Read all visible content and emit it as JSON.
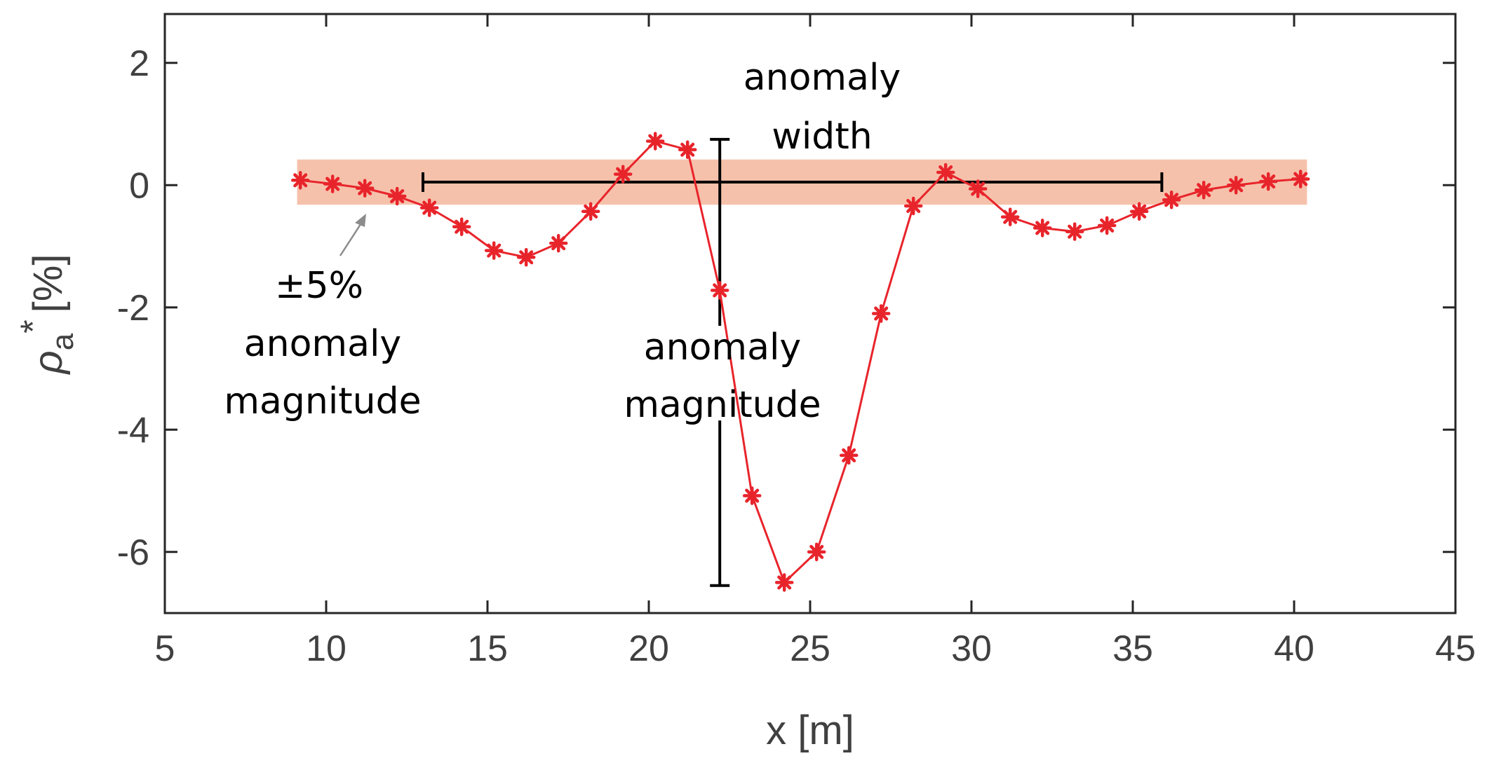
{
  "chart_data": {
    "type": "line",
    "title": "",
    "xlabel": "x [m]",
    "ylabel_main": "ρ",
    "ylabel_sub": "a",
    "ylabel_sup": "*",
    "ylabel_unit": "[%]",
    "xlim": [
      5,
      45
    ],
    "ylim": [
      -7,
      2.8
    ],
    "xticks": [
      5,
      10,
      15,
      20,
      25,
      30,
      35,
      40,
      45
    ],
    "yticks": [
      -6,
      -4,
      -2,
      0,
      2
    ],
    "xtick_labels": [
      "5",
      "10",
      "15",
      "20",
      "25",
      "30",
      "35",
      "40",
      "45"
    ],
    "ytick_labels": [
      "-6",
      "-4",
      "-2",
      "0",
      "2"
    ],
    "series": [
      {
        "name": "rho_a*",
        "color": "#e8242b",
        "marker": "asterisk",
        "x": [
          9.2,
          10.2,
          11.2,
          12.2,
          13.2,
          14.2,
          15.2,
          16.2,
          17.2,
          18.2,
          19.2,
          20.2,
          21.2,
          22.2,
          23.2,
          24.2,
          25.2,
          26.2,
          27.2,
          28.2,
          29.2,
          30.2,
          31.2,
          32.2,
          33.2,
          34.2,
          35.2,
          36.2,
          37.2,
          38.2,
          39.2,
          40.2
        ],
        "y": [
          0.08,
          0.02,
          -0.05,
          -0.18,
          -0.37,
          -0.68,
          -1.07,
          -1.18,
          -0.95,
          -0.43,
          0.18,
          0.72,
          0.58,
          -1.72,
          -5.08,
          -6.5,
          -6.0,
          -4.42,
          -2.1,
          -0.34,
          0.21,
          -0.06,
          -0.52,
          -0.7,
          -0.76,
          -0.66,
          -0.43,
          -0.24,
          -0.08,
          0.0,
          0.06,
          0.1
        ]
      }
    ],
    "band": {
      "y_low": -0.32,
      "y_high": 0.42,
      "x_start": 9.1,
      "x_end": 40.4,
      "color": "#f6c1ab"
    },
    "width_bar": {
      "x_start": 13.0,
      "x_end": 35.9,
      "y": 0.05
    },
    "magnitude_bar": {
      "x": 22.2,
      "y_top": 0.75,
      "y_bottom": -6.55,
      "gap_top": -2.3,
      "gap_bottom": -3.85
    },
    "annotations": {
      "width_line1": "anomaly",
      "width_line2": "width",
      "magnitude_line1": "anomaly",
      "magnitude_line2": "magnitude",
      "band_line1": "±5%",
      "band_line2": "anomaly",
      "band_line3": "magnitude"
    }
  }
}
